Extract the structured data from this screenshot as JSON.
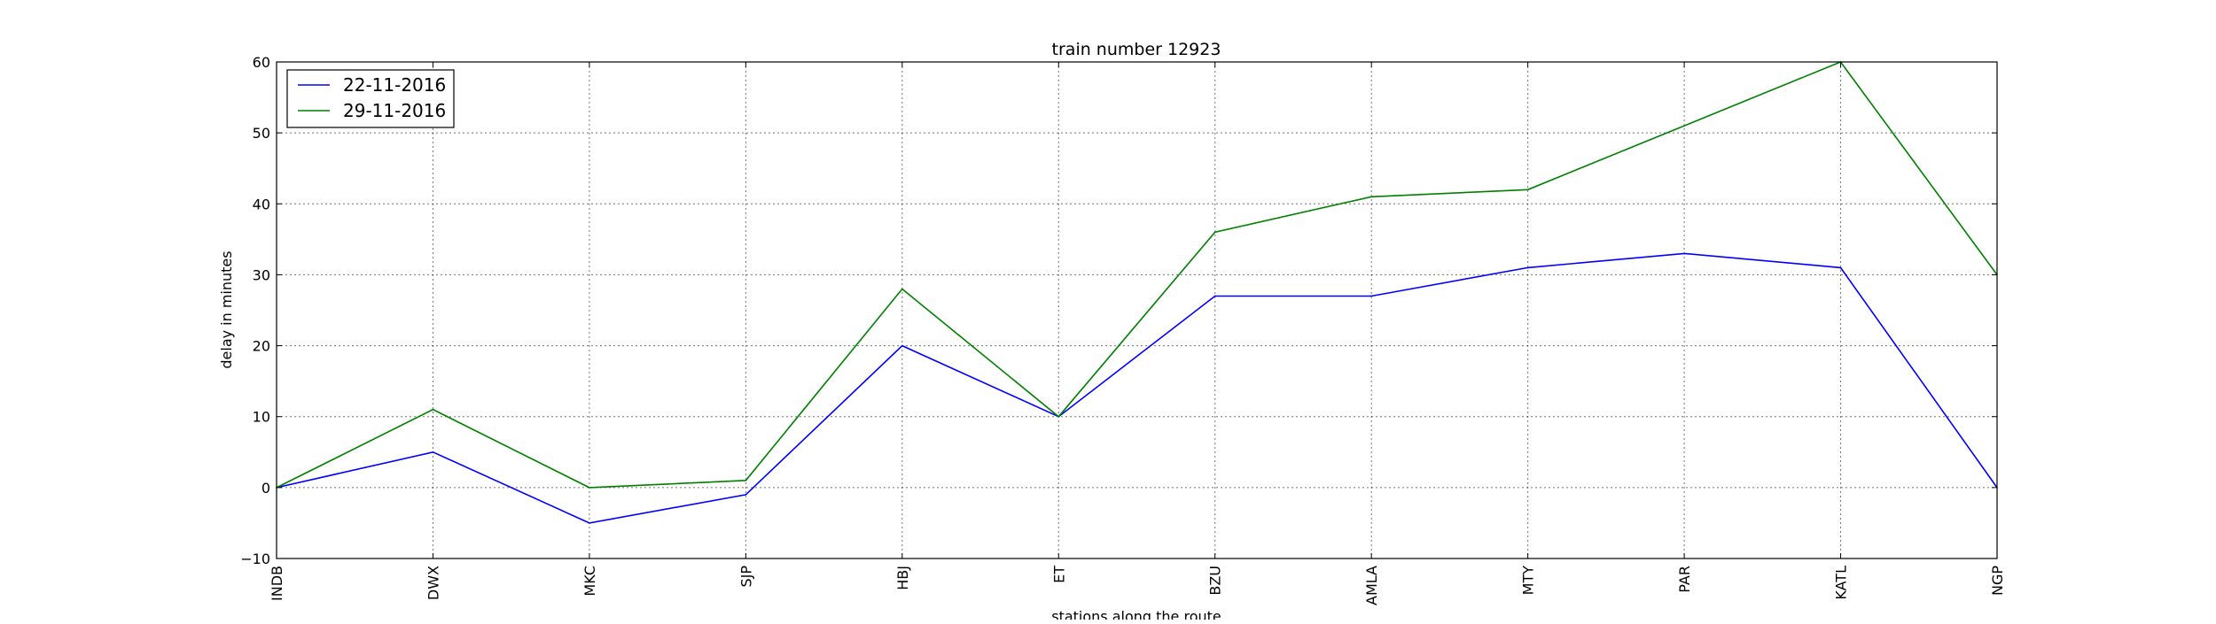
{
  "chart_data": {
    "type": "line",
    "title": "train number 12923",
    "xlabel": "stations along the route",
    "ylabel": "delay in minutes",
    "categories": [
      "INDB",
      "DWX",
      "MKC",
      "SJP",
      "HBJ",
      "ET",
      "BZU",
      "AMLA",
      "MTY",
      "PAR",
      "KATL",
      "NGP"
    ],
    "ylim": [
      -10,
      60
    ],
    "yticks": [
      -10,
      0,
      10,
      20,
      30,
      40,
      50,
      60
    ],
    "grid": true,
    "legend_position": "upper-left",
    "series": [
      {
        "name": "22-11-2016",
        "color": "#0000ff",
        "values": [
          0,
          5,
          -5,
          -1,
          20,
          10,
          27,
          27,
          31,
          33,
          31,
          0
        ]
      },
      {
        "name": "29-11-2016",
        "color": "#008000",
        "values": [
          0,
          11,
          0,
          1,
          28,
          10,
          36,
          41,
          42,
          51,
          60,
          30
        ]
      }
    ]
  }
}
